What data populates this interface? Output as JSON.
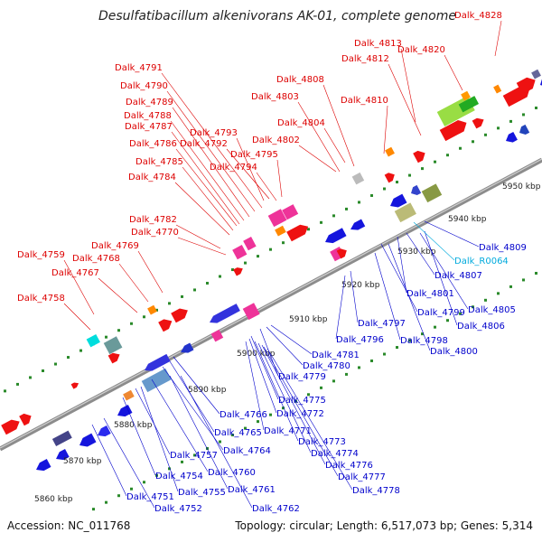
{
  "title": "Desulfatibacillum alkenivorans AK-01, complete genome",
  "accession": "Accession: NC_011768",
  "summary": "Topology: circular; Length: 6,517,073 bp; Genes: 5,314",
  "colors": {
    "forward_label": "#dd0000",
    "reverse_label": "#0000cc",
    "rna_label": "#00aadd",
    "backbone": "#999999",
    "tick_dot": "#2a8a2a"
  },
  "scale_labels": [
    "5860 kbp",
    "5870 kbp",
    "5880 kbp",
    "5890 kbp",
    "5900 kbp",
    "5910 kbp",
    "5920 kbp",
    "5930 kbp",
    "5940 kbp",
    "5950 kbp"
  ],
  "forward_labels": [
    "Dalk_4828",
    "Dalk_4813",
    "Dalk_4812",
    "Dalk_4820",
    "Dalk_4791",
    "Dalk_4790",
    "Dalk_4789",
    "Dalk_4788",
    "Dalk_4787",
    "Dalk_4786",
    "Dalk_4785",
    "Dalk_4784",
    "Dalk_4793",
    "Dalk_4792",
    "Dalk_4795",
    "Dalk_4794",
    "Dalk_4808",
    "Dalk_4803",
    "Dalk_4810",
    "Dalk_4804",
    "Dalk_4802",
    "Dalk_4782",
    "Dalk_4770",
    "Dalk_4769",
    "Dalk_4768",
    "Dalk_4759",
    "Dalk_4767",
    "Dalk_4758"
  ],
  "reverse_labels": [
    "Dalk_4809",
    "Dalk_4807",
    "Dalk_4801",
    "Dalk_4805",
    "Dalk_4806",
    "Dalk_4799",
    "Dalk_4798",
    "Dalk_4800",
    "Dalk_4797",
    "Dalk_4796",
    "Dalk_4781",
    "Dalk_4780",
    "Dalk_4779",
    "Dalk_4775",
    "Dalk_4772",
    "Dalk_4771",
    "Dalk_4773",
    "Dalk_4774",
    "Dalk_4776",
    "Dalk_4777",
    "Dalk_4778",
    "Dalk_4766",
    "Dalk_4765",
    "Dalk_4764",
    "Dalk_4757",
    "Dalk_4760",
    "Dalk_4754",
    "Dalk_4755",
    "Dalk_4761",
    "Dalk_4751",
    "Dalk_4752",
    "Dalk_4762"
  ],
  "rna_labels": [
    "Dalk_R0064"
  ]
}
